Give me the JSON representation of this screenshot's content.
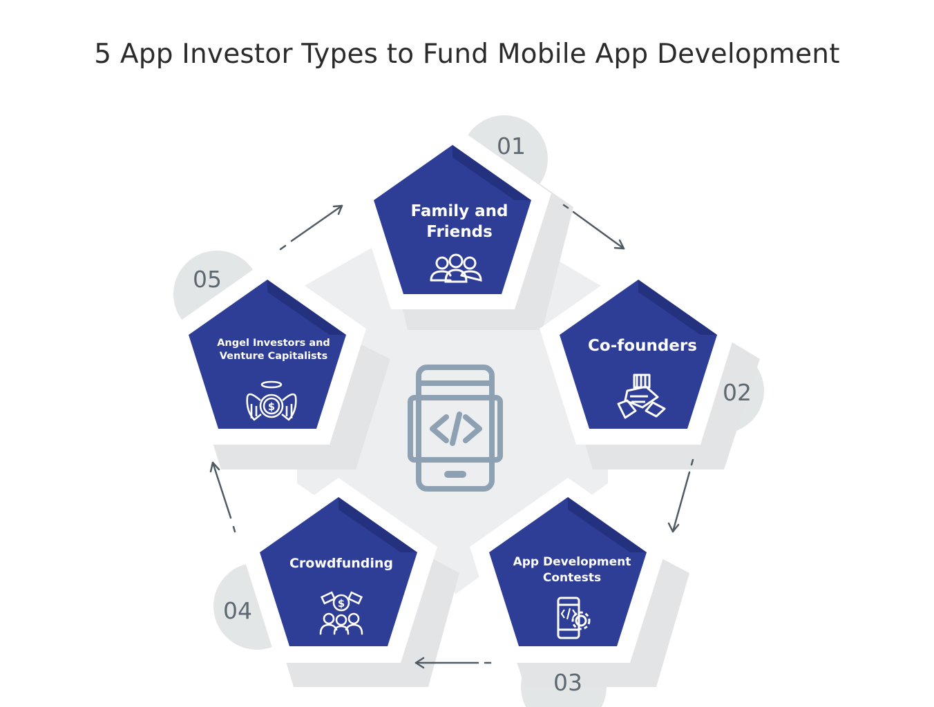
{
  "title": "5 App Investor Types to Fund Mobile App Development",
  "center_icon": "mobile-code-icon",
  "items": [
    {
      "number": "01",
      "label_lines": [
        "Family and",
        "Friends"
      ],
      "icon": "group-people-icon"
    },
    {
      "number": "02",
      "label_lines": [
        "Co-founders"
      ],
      "icon": "stacked-hands-icon"
    },
    {
      "number": "03",
      "label_lines": [
        "App Development",
        "Contests"
      ],
      "icon": "mobile-gear-icon"
    },
    {
      "number": "04",
      "label_lines": [
        "Crowdfunding"
      ],
      "icon": "crowd-money-icon"
    },
    {
      "number": "05",
      "label_lines": [
        "Angel Investors and",
        "Venture Capitalists"
      ],
      "icon": "angel-money-icon"
    }
  ],
  "colors": {
    "pentagon": "#2e3d96",
    "pentagon_shade": "#24317f",
    "shadow": "#e2e4e5",
    "circle": "#e3e6e7",
    "hexagon": "#eceeef",
    "arrow": "#4f5a63",
    "center_icon": "#8ea1b3"
  }
}
